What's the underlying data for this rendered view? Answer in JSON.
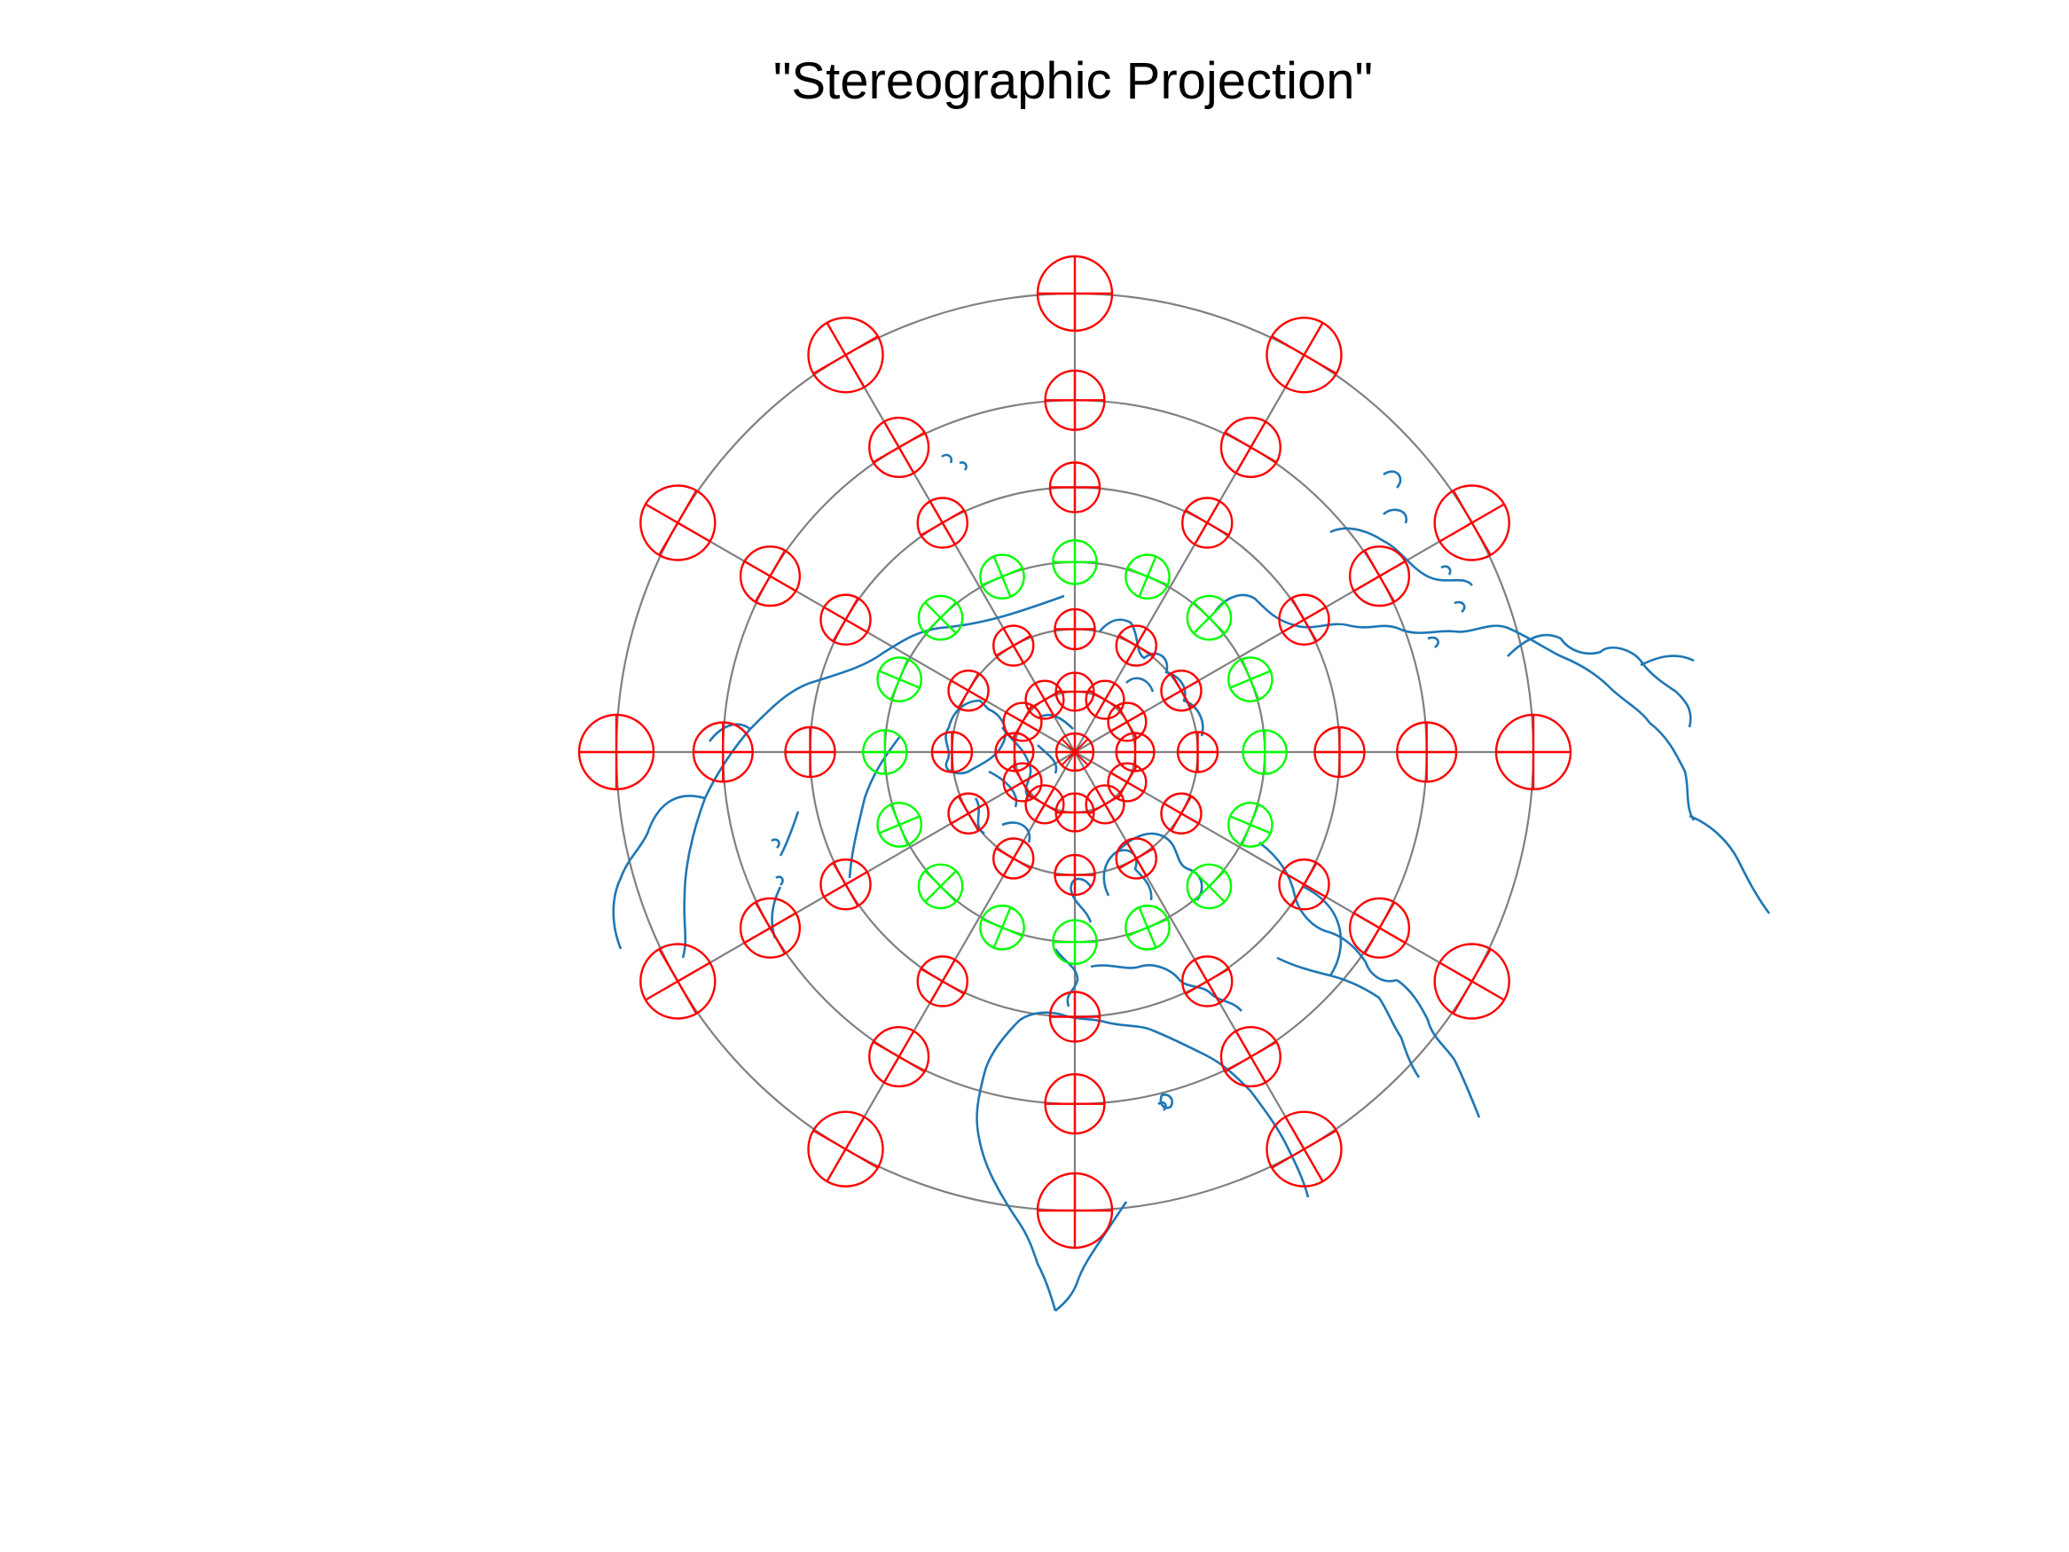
{
  "title": "\"Stereographic Projection\"",
  "colors": {
    "graticule": "#808080",
    "coastline": "#1f77b4",
    "indicatrix_red": "#ff0000",
    "indicatrix_green": "#00ff00",
    "background": "#ffffff"
  },
  "projection": {
    "name": "stereographic",
    "center": "north-pole",
    "parallels_deg": [
      75,
      60,
      45,
      30,
      15,
      0
    ],
    "meridian_step_deg": 30
  },
  "tissot_indicatrices": {
    "latitudes_deg": [
      90,
      75,
      60,
      45,
      30,
      15,
      0
    ],
    "green_latitude_deg": 45,
    "green_meridian_step_deg": 22.5,
    "red_meridian_step_deg": 30
  }
}
